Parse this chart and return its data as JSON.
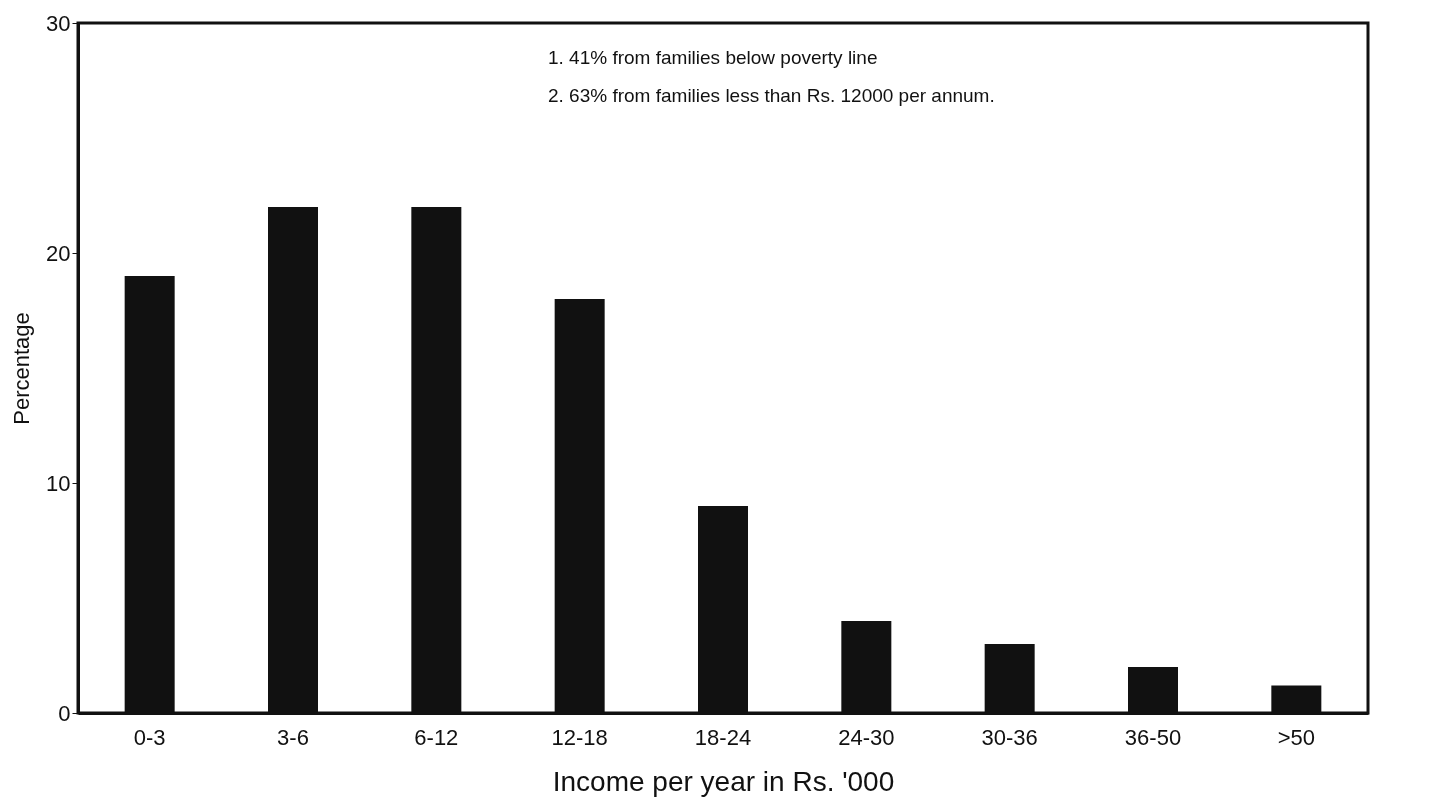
{
  "chart_data": {
    "type": "bar",
    "xlabel": "Income per year in Rs. '000",
    "ylabel": "Percentage",
    "categories": [
      "0-3",
      "3-6",
      "6-12",
      "12-18",
      "18-24",
      "24-30",
      "30-36",
      "36-50",
      ">50"
    ],
    "values": [
      19,
      22,
      22,
      18,
      9,
      4,
      3,
      2,
      1.2
    ],
    "color": "#111111",
    "ylim": [
      0,
      30
    ],
    "yticks": [
      0,
      10,
      20,
      30
    ],
    "grid": false,
    "annotations": [
      "1.   41% from families below poverty line",
      "2.   63% from families less than Rs. 12000 per annum."
    ]
  }
}
